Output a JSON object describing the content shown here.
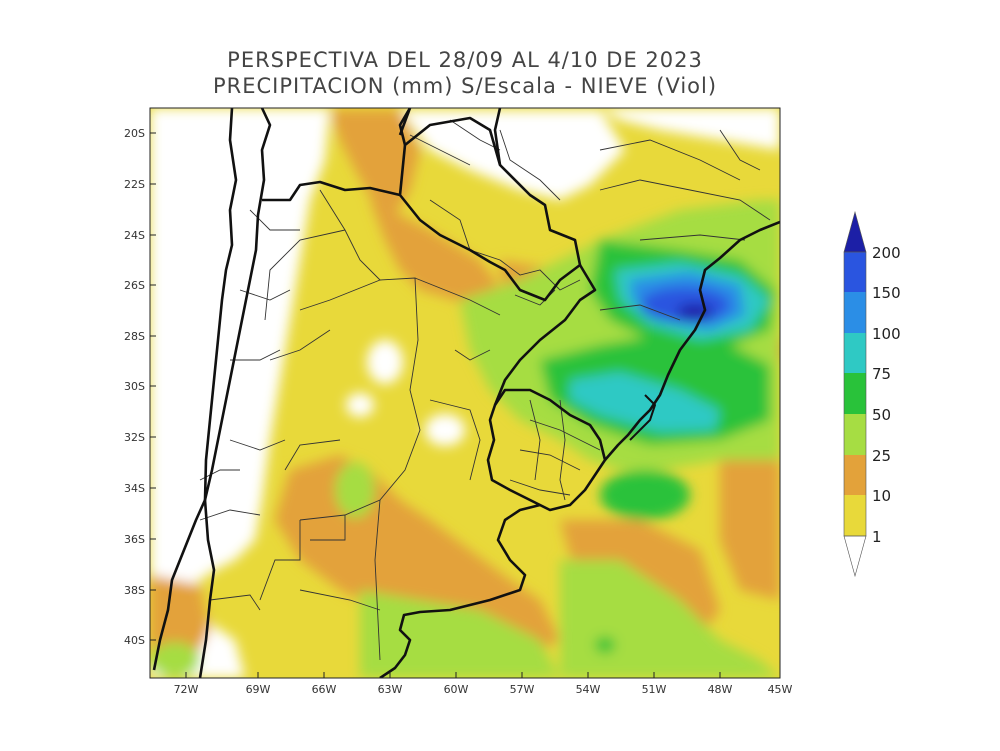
{
  "title": {
    "line1": "PERSPECTIVA DEL 28/09 AL 4/10 DE 2023",
    "line2": "PRECIPITACION (mm) S/Escala - NIEVE (Viol)"
  },
  "axes": {
    "lat_labels": [
      "20S",
      "22S",
      "24S",
      "26S",
      "28S",
      "30S",
      "32S",
      "34S",
      "36S",
      "38S",
      "40S"
    ],
    "lon_labels": [
      "72W",
      "69W",
      "66W",
      "63W",
      "60W",
      "57W",
      "54W",
      "51W",
      "48W",
      "45W"
    ]
  },
  "colorbar": {
    "levels": [
      "1",
      "10",
      "25",
      "50",
      "75",
      "100",
      "150",
      "200"
    ],
    "colors": {
      "lt1": "#ffffff",
      "1_10": "#e8d93a",
      "10_25": "#e3a23a",
      "25_50": "#a6dd43",
      "50_75": "#29c23a",
      "75_100": "#2fc9c4",
      "100_150": "#2b8ee6",
      "150_200": "#2a55e0",
      "gt200": "#1c1fa6"
    }
  },
  "map": {
    "extent": {
      "lon_min": -73.5,
      "lon_max": -45,
      "lat_min": -41.5,
      "lat_max": -19
    },
    "border_color": "#111111",
    "province_line_color": "#333333"
  }
}
